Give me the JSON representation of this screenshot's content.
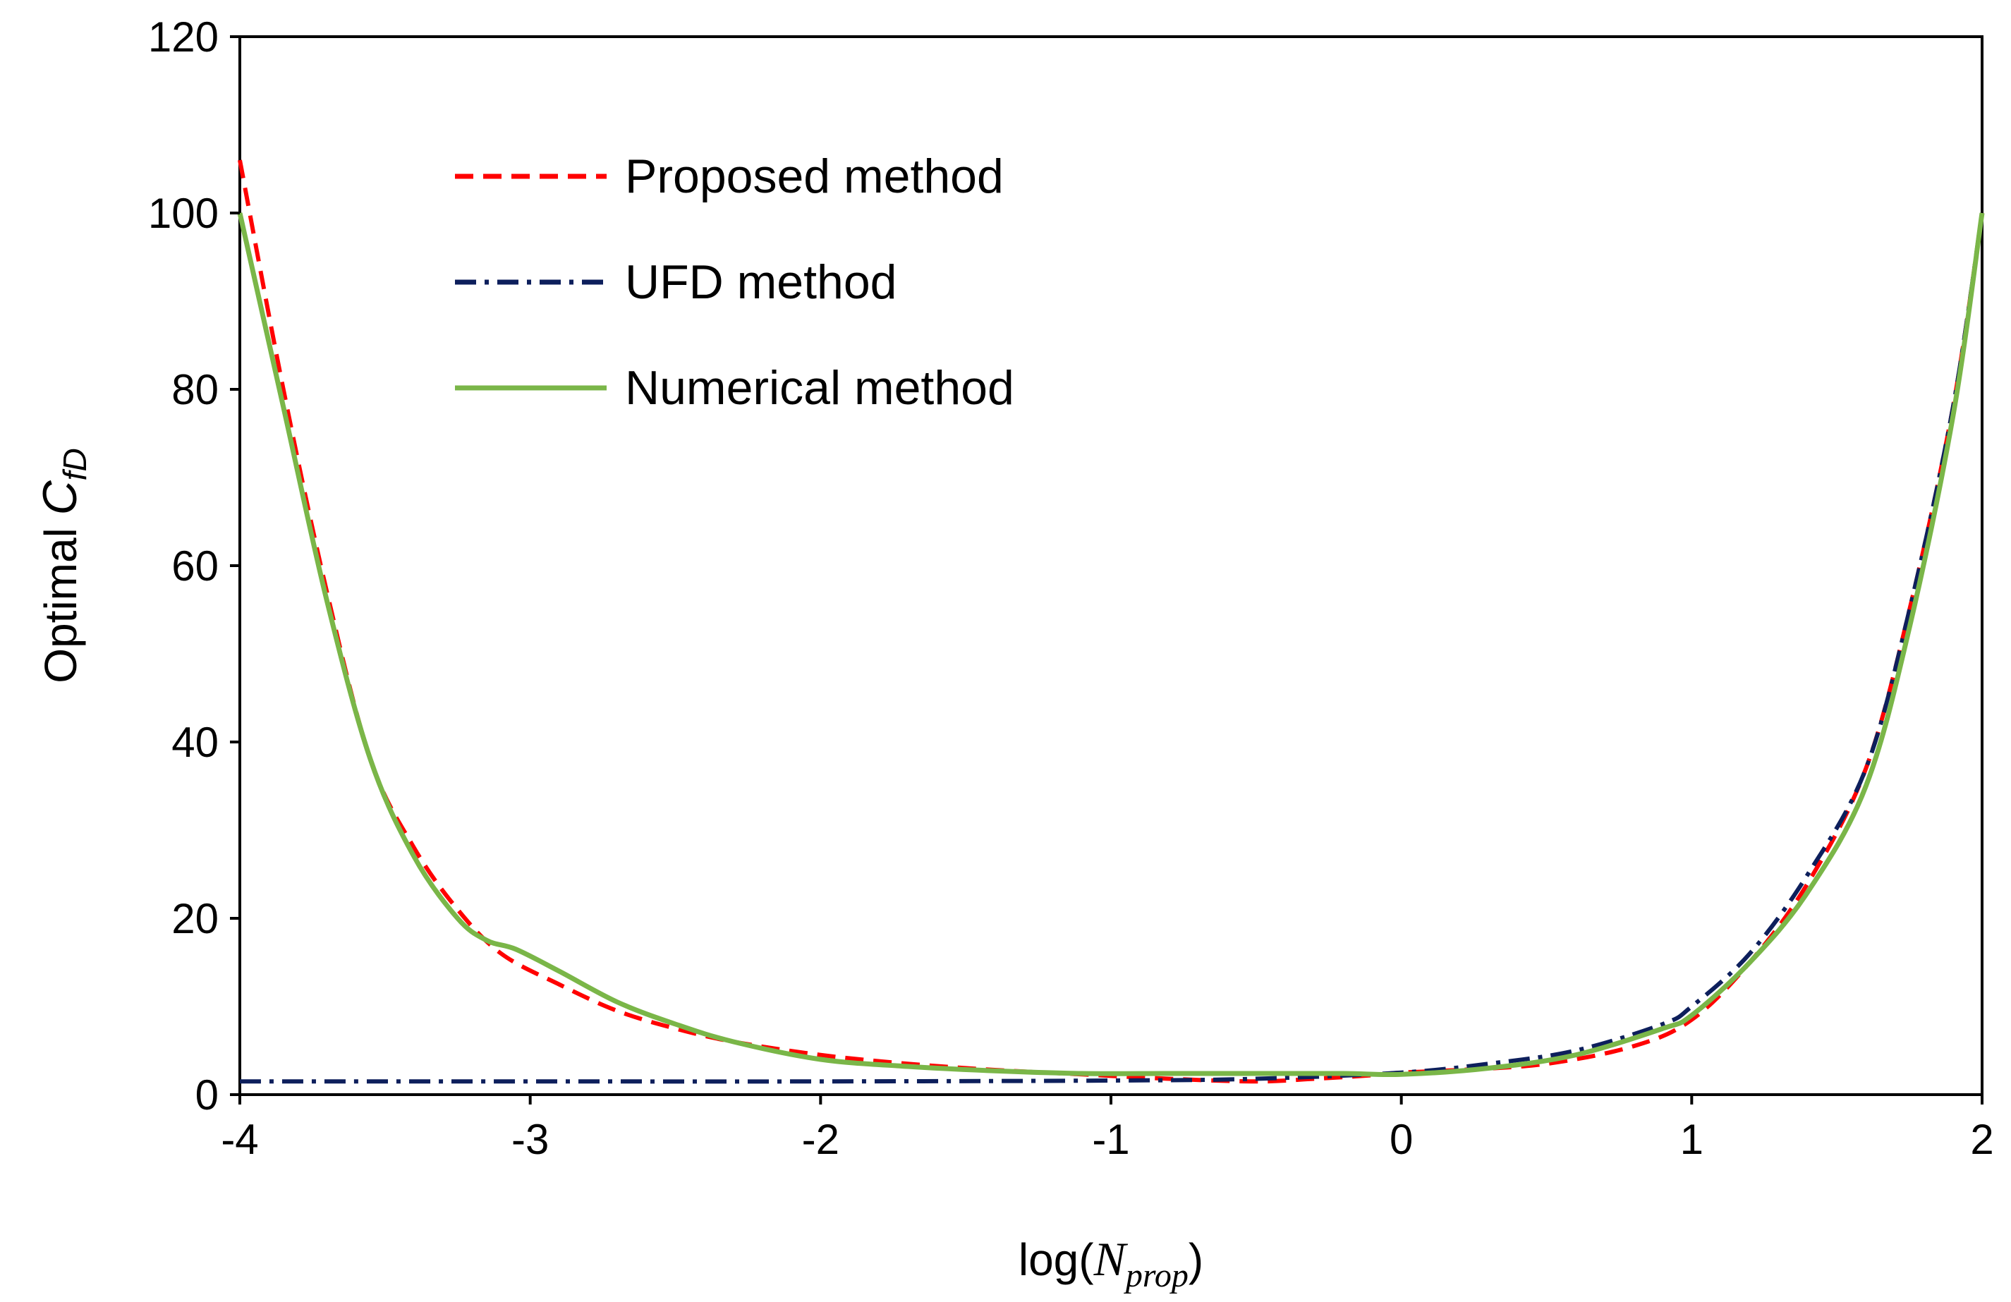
{
  "chart_data": {
    "type": "line",
    "title": "",
    "xlabel_prefix": "log(",
    "xlabel_var": "N",
    "xlabel_sub": "prop",
    "xlabel_suffix": ")",
    "ylabel_prefix": "Optimal ",
    "ylabel_var": "C",
    "ylabel_sub": "fD",
    "xlim": [
      -4,
      2
    ],
    "ylim": [
      0,
      120
    ],
    "x_ticks": [
      -4,
      -3,
      -2,
      -1,
      0,
      1,
      2
    ],
    "y_ticks": [
      0,
      20,
      40,
      60,
      80,
      100,
      120
    ],
    "x_tick_labels": [
      "-4",
      "-3",
      "-2",
      "-1",
      "0",
      "1",
      "2"
    ],
    "y_tick_labels": [
      "0",
      "20",
      "40",
      "60",
      "80",
      "100",
      "120"
    ],
    "grid": false,
    "legend_position": "top-left",
    "series": [
      {
        "name": "Proposed method",
        "color": "#ff0000",
        "style": "dashed",
        "x": [
          -4.0,
          -3.85,
          -3.7,
          -3.55,
          -3.4,
          -3.25,
          -3.1,
          -2.9,
          -2.7,
          -2.5,
          -2.3,
          -2.0,
          -1.7,
          -1.4,
          -1.1,
          -0.8,
          -0.5,
          -0.3,
          -0.1,
          0.0,
          0.2,
          0.5,
          0.8,
          1.0,
          1.2,
          1.4,
          1.6,
          1.75,
          1.9,
          2.0
        ],
        "y": [
          106,
          80,
          57,
          38,
          28,
          21,
          16,
          12.5,
          9.5,
          7.5,
          6,
          4.5,
          3.5,
          2.8,
          2.3,
          1.8,
          1.5,
          1.8,
          2.2,
          2.5,
          2.8,
          3.5,
          5.5,
          8.5,
          15,
          24,
          37,
          55,
          78,
          100
        ]
      },
      {
        "name": "UFD method",
        "color": "#0d1f5c",
        "style": "dash-dot",
        "x": [
          -4.0,
          -3.0,
          -2.0,
          -1.0,
          -0.5,
          0.0,
          0.3,
          0.6,
          0.9,
          1.0,
          1.2,
          1.4,
          1.6,
          1.75,
          1.9,
          2.0
        ],
        "y": [
          1.5,
          1.5,
          1.5,
          1.6,
          1.8,
          2.5,
          3.5,
          5.0,
          8.0,
          10,
          16,
          25,
          37,
          55,
          78,
          100
        ]
      },
      {
        "name": "Numerical method",
        "color": "#7ab648",
        "style": "solid",
        "x": [
          -4.0,
          -3.85,
          -3.7,
          -3.55,
          -3.4,
          -3.25,
          -3.15,
          -3.05,
          -2.9,
          -2.7,
          -2.5,
          -2.3,
          -2.0,
          -1.7,
          -1.4,
          -1.1,
          -0.8,
          -0.5,
          -0.2,
          0.0,
          0.3,
          0.6,
          0.9,
          1.0,
          1.2,
          1.4,
          1.6,
          1.75,
          1.9,
          2.0
        ],
        "y": [
          100,
          78,
          56,
          38,
          27,
          20,
          17.5,
          16.5,
          14,
          10.5,
          8,
          6,
          4,
          3.2,
          2.7,
          2.4,
          2.4,
          2.4,
          2.4,
          2.3,
          3,
          4.5,
          7.5,
          9,
          15,
          23,
          35,
          53,
          77,
          100
        ]
      }
    ]
  }
}
